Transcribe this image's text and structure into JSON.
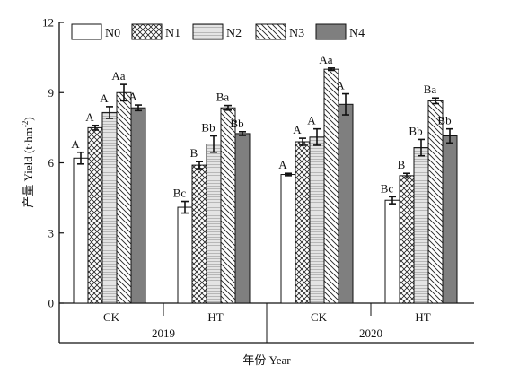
{
  "chart_data": {
    "type": "bar",
    "ylabel": "产量 Yield (t·hm",
    "ylabel_sup": "-2",
    "ylabel_close": ")",
    "xlabel": "年份 Year",
    "ylim": [
      0,
      12
    ],
    "yticks": [
      "0",
      "3",
      "6",
      "9",
      "12"
    ],
    "years": [
      "2019",
      "2020"
    ],
    "groups": [
      {
        "year": "2019",
        "label": "CK"
      },
      {
        "year": "2019",
        "label": "HT"
      },
      {
        "year": "2020",
        "label": "CK"
      },
      {
        "year": "2020",
        "label": "HT"
      }
    ],
    "series": [
      {
        "name": "N0",
        "values": [
          6.2,
          4.1,
          5.5,
          4.4
        ],
        "errors": [
          0.25,
          0.25,
          0.05,
          0.15
        ],
        "labels": [
          "A",
          "Bc",
          "A",
          "Bc"
        ]
      },
      {
        "name": "N1",
        "values": [
          7.5,
          5.9,
          6.9,
          5.45
        ],
        "errors": [
          0.1,
          0.15,
          0.15,
          0.1
        ],
        "labels": [
          "A",
          "B",
          "A",
          "B"
        ]
      },
      {
        "name": "N2",
        "values": [
          8.15,
          6.8,
          7.1,
          6.65
        ],
        "errors": [
          0.25,
          0.35,
          0.35,
          0.35
        ],
        "labels": [
          "A",
          "Bb",
          "A",
          "Bb"
        ]
      },
      {
        "name": "N3",
        "values": [
          9.0,
          8.35,
          10.0,
          8.65
        ],
        "errors": [
          0.35,
          0.1,
          0.05,
          0.12
        ],
        "labels": [
          "Aa",
          "Ba",
          "Aa",
          "Ba"
        ]
      },
      {
        "name": "N4",
        "values": [
          8.35,
          7.25,
          8.5,
          7.15
        ],
        "errors": [
          0.12,
          0.08,
          0.45,
          0.3
        ],
        "labels": [
          "A",
          "Bb",
          "A",
          "Bb"
        ]
      }
    ],
    "legend": "top",
    "grid": false
  }
}
